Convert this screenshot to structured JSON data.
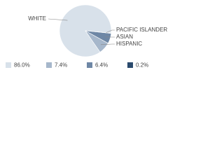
{
  "chart_data": {
    "type": "pie",
    "categories": [
      "WHITE",
      "HISPANIC",
      "ASIAN",
      "PACIFIC ISLANDER"
    ],
    "values": [
      86.0,
      7.4,
      6.4,
      0.2
    ],
    "value_labels": [
      "86.0%",
      "7.4%",
      "6.4%",
      "0.2%"
    ],
    "colors": [
      "#d8e1ea",
      "#a6b7cb",
      "#6e87a5",
      "#2a4a6d"
    ]
  }
}
